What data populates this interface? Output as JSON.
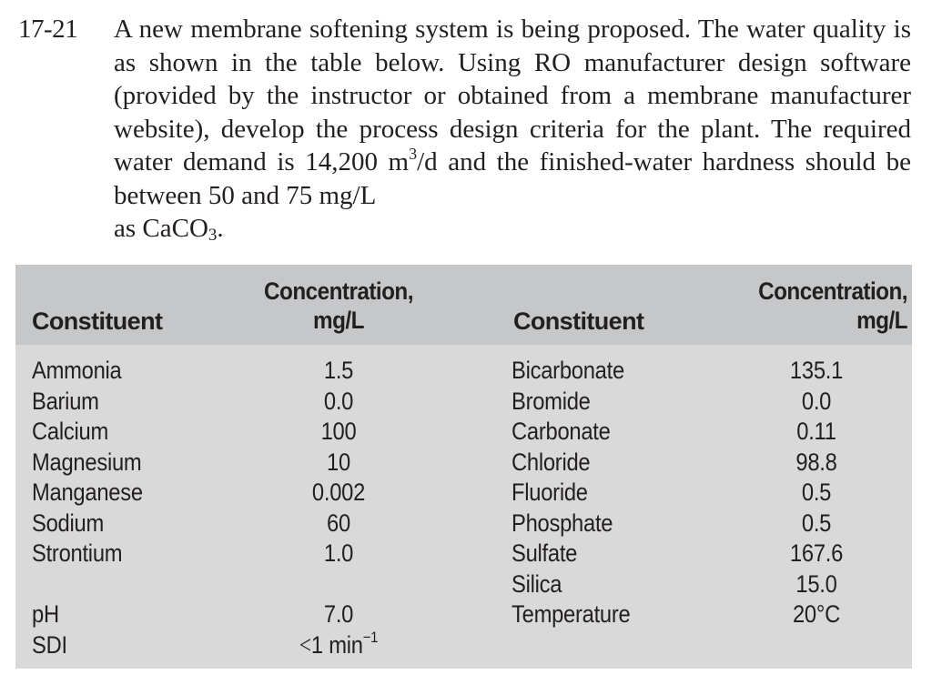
{
  "problem": {
    "number": "17-21",
    "lines": [
      "A new membrane softening system is being proposed. The water",
      "quality is as shown in the table below. Using RO manufacturer",
      "design software (provided by the instructor or obtained from",
      "a membrane manufacturer website), develop the process design",
      "criteria for the plant. The required water demand is 14,200 m",
      "and the finished-water hardness should be between 50 and 75 mg/L",
      "as CaCO"
    ],
    "demand_unit_exp": "3",
    "demand_unit_tail": "/d",
    "caco3_sub": "3",
    "caco3_tail": "."
  },
  "table": {
    "headers": {
      "constituent_left": "Constituent",
      "conc_left_line1": "Concentration,",
      "conc_left_line2": "mg/L",
      "constituent_right": "Constituent",
      "conc_right_line1": "Concentration,",
      "conc_right_line2": "mg/L"
    },
    "left": [
      {
        "name": "Ammonia",
        "value": "1.5"
      },
      {
        "name": "Barium",
        "value": "0.0"
      },
      {
        "name": "Calcium",
        "value": "100"
      },
      {
        "name": "Magnesium",
        "value": "10"
      },
      {
        "name": "Manganese",
        "value": "0.002"
      },
      {
        "name": "Sodium",
        "value": "60"
      },
      {
        "name": "Strontium",
        "value": "1.0"
      },
      {
        "name": "",
        "value": ""
      },
      {
        "name": "pH",
        "value": "7.0"
      },
      {
        "name": "SDI",
        "value_prefix": "<",
        "value": "1 min",
        "value_exp": "−1"
      }
    ],
    "right": [
      {
        "name": "Bicarbonate",
        "value": "135.1"
      },
      {
        "name": "Bromide",
        "value": "0.0"
      },
      {
        "name": "Carbonate",
        "value": "0.11"
      },
      {
        "name": "Chloride",
        "value": "98.8"
      },
      {
        "name": "Fluoride",
        "value": "0.5"
      },
      {
        "name": "Phosphate",
        "value": "0.5"
      },
      {
        "name": "Sulfate",
        "value": "167.6"
      },
      {
        "name": "Silica",
        "value": "15.0"
      },
      {
        "name": "Temperature",
        "value": "20°C"
      }
    ]
  },
  "colors": {
    "header_bg": "#c6c7c8",
    "body_bg": "#d9d9d9",
    "text": "#231f20"
  }
}
